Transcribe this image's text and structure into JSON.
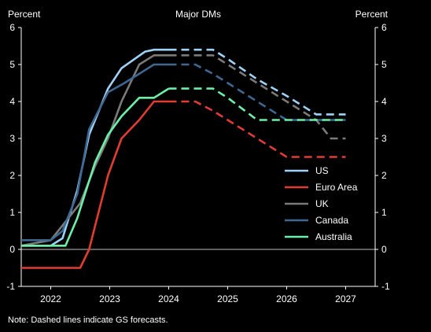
{
  "chart_data": {
    "type": "line",
    "title": "Major DMs",
    "ylabel_left": "Percent",
    "ylabel_right": "Percent",
    "ylim": [
      -1,
      6
    ],
    "yticks": [
      "-1",
      "0",
      "1",
      "2",
      "3",
      "4",
      "5",
      "6"
    ],
    "xlim": [
      2021.5,
      2027.5
    ],
    "xticks": [
      "2022",
      "2023",
      "2024",
      "2025",
      "2026",
      "2027"
    ],
    "xtick_values": [
      2022,
      2023,
      2024,
      2025,
      2026,
      2027
    ],
    "note": "Note: Dashed lines indicate GS forecasts.",
    "legend_position": "right-center",
    "series": [
      {
        "name": "US",
        "color": "#9fd2f7",
        "actual": [
          [
            2021.5,
            0.1
          ],
          [
            2022.0,
            0.1
          ],
          [
            2022.2,
            0.3
          ],
          [
            2022.45,
            1.6
          ],
          [
            2022.65,
            3.1
          ],
          [
            2022.97,
            4.35
          ],
          [
            2023.2,
            4.9
          ],
          [
            2023.6,
            5.35
          ],
          [
            2023.75,
            5.4
          ],
          [
            2024.0,
            5.4
          ]
        ],
        "forecast": [
          [
            2024.0,
            5.4
          ],
          [
            2024.75,
            5.4
          ],
          [
            2025.0,
            5.15
          ],
          [
            2025.5,
            4.6
          ],
          [
            2026.0,
            4.15
          ],
          [
            2026.5,
            3.65
          ],
          [
            2027.0,
            3.65
          ]
        ]
      },
      {
        "name": "Euro Area",
        "color": "#e03c32",
        "actual": [
          [
            2021.5,
            -0.5
          ],
          [
            2022.0,
            -0.5
          ],
          [
            2022.5,
            -0.5
          ],
          [
            2022.65,
            0.0
          ],
          [
            2022.97,
            2.0
          ],
          [
            2023.2,
            3.0
          ],
          [
            2023.5,
            3.5
          ],
          [
            2023.75,
            4.0
          ],
          [
            2024.0,
            4.0
          ]
        ],
        "forecast": [
          [
            2024.0,
            4.0
          ],
          [
            2024.45,
            4.0
          ],
          [
            2024.75,
            3.75
          ],
          [
            2025.0,
            3.5
          ],
          [
            2025.5,
            3.0
          ],
          [
            2026.0,
            2.5
          ],
          [
            2027.0,
            2.5
          ]
        ]
      },
      {
        "name": "UK",
        "color": "#7a7a7a",
        "actual": [
          [
            2021.5,
            0.1
          ],
          [
            2022.0,
            0.25
          ],
          [
            2022.25,
            0.75
          ],
          [
            2022.5,
            1.25
          ],
          [
            2022.75,
            2.25
          ],
          [
            2022.97,
            3.0
          ],
          [
            2023.2,
            4.0
          ],
          [
            2023.5,
            5.0
          ],
          [
            2023.75,
            5.25
          ],
          [
            2024.0,
            5.25
          ]
        ],
        "forecast": [
          [
            2024.0,
            5.25
          ],
          [
            2024.75,
            5.25
          ],
          [
            2025.0,
            5.0
          ],
          [
            2025.5,
            4.5
          ],
          [
            2026.0,
            4.0
          ],
          [
            2026.5,
            3.5
          ],
          [
            2026.75,
            3.0
          ],
          [
            2027.0,
            3.0
          ]
        ]
      },
      {
        "name": "Canada",
        "color": "#3d6892",
        "actual": [
          [
            2021.5,
            0.25
          ],
          [
            2022.0,
            0.25
          ],
          [
            2022.2,
            0.5
          ],
          [
            2022.45,
            1.5
          ],
          [
            2022.65,
            3.25
          ],
          [
            2022.97,
            4.25
          ],
          [
            2023.25,
            4.5
          ],
          [
            2023.5,
            4.75
          ],
          [
            2023.75,
            5.0
          ],
          [
            2024.0,
            5.0
          ]
        ],
        "forecast": [
          [
            2024.0,
            5.0
          ],
          [
            2024.45,
            5.0
          ],
          [
            2024.75,
            4.75
          ],
          [
            2025.0,
            4.5
          ],
          [
            2025.5,
            4.0
          ],
          [
            2025.75,
            3.75
          ],
          [
            2026.0,
            3.5
          ],
          [
            2027.0,
            3.5
          ]
        ]
      },
      {
        "name": "Australia",
        "color": "#6cf0a8",
        "actual": [
          [
            2021.5,
            0.1
          ],
          [
            2022.0,
            0.1
          ],
          [
            2022.25,
            0.1
          ],
          [
            2022.45,
            0.85
          ],
          [
            2022.75,
            2.35
          ],
          [
            2022.97,
            3.1
          ],
          [
            2023.2,
            3.6
          ],
          [
            2023.5,
            4.1
          ],
          [
            2023.75,
            4.1
          ],
          [
            2024.0,
            4.35
          ]
        ],
        "forecast": [
          [
            2024.0,
            4.35
          ],
          [
            2024.75,
            4.35
          ],
          [
            2025.0,
            4.1
          ],
          [
            2025.5,
            3.5
          ],
          [
            2026.0,
            3.5
          ],
          [
            2027.0,
            3.5
          ]
        ]
      }
    ]
  }
}
